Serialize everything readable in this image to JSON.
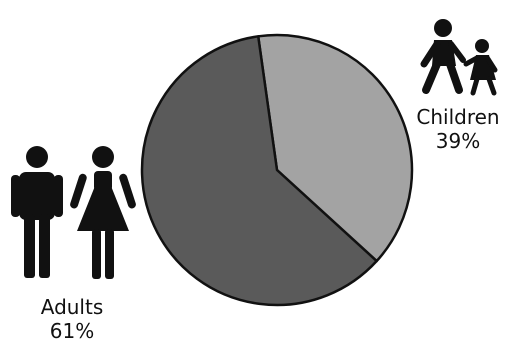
{
  "chart_data": {
    "type": "pie",
    "title": "",
    "slices": [
      {
        "name": "Adults",
        "value": 61,
        "label": "Adults",
        "value_label": "61%",
        "color": "#5a5a5a",
        "icon": "adults-icon"
      },
      {
        "name": "Children",
        "value": 39,
        "label": "Children",
        "value_label": "39%",
        "color": "#a3a3a3",
        "icon": "children-icon"
      }
    ],
    "start_angle_deg": -8,
    "direction": "clockwise",
    "outline_color": "#111111",
    "legend": "none"
  }
}
